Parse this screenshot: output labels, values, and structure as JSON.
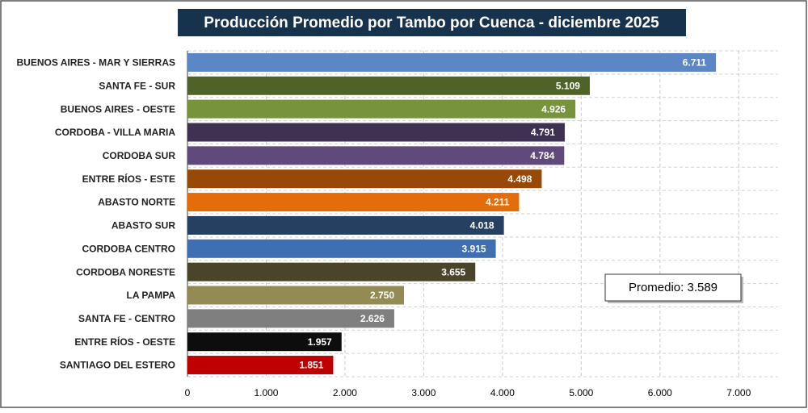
{
  "chart_data": {
    "type": "bar",
    "orientation": "horizontal",
    "title": "Producción Promedio por Tambo por Cuenca - diciembre 2025",
    "categories": [
      "BUENOS AIRES - MAR Y SIERRAS",
      "SANTA FE - SUR",
      "BUENOS AIRES - OESTE",
      "CORDOBA - VILLA MARIA",
      "CORDOBA SUR",
      "ENTRE RÍOS - ESTE",
      "ABASTO NORTE",
      "ABASTO SUR",
      "CORDOBA CENTRO",
      "CORDOBA NORESTE",
      "LA PAMPA",
      "SANTA FE - CENTRO",
      "ENTRE RÍOS - OESTE",
      "SANTIAGO DEL ESTERO"
    ],
    "values": [
      6711,
      5109,
      4926,
      4791,
      4784,
      4498,
      4211,
      4018,
      3915,
      3655,
      2750,
      2626,
      1957,
      1851
    ],
    "value_labels": [
      "6.711",
      "5.109",
      "4.926",
      "4.791",
      "4.784",
      "4.498",
      "4.211",
      "4.018",
      "3.915",
      "3.655",
      "2.750",
      "2.626",
      "1.957",
      "1.851"
    ],
    "colors": [
      "#5b87c6",
      "#4f6228",
      "#77933c",
      "#3f3151",
      "#604a7b",
      "#984807",
      "#e46c0a",
      "#254061",
      "#3e6fb0",
      "#4a452a",
      "#948a54",
      "#7f7f7f",
      "#0d0d0d",
      "#c00000"
    ],
    "xlim": [
      0,
      7500
    ],
    "xticks": [
      0,
      {
        "value": 1000,
        "label": "1.000"
      },
      {
        "value": 2000,
        "label": "2.000"
      },
      {
        "value": 3000,
        "label": "3.000"
      },
      {
        "value": 4000,
        "label": "4.000"
      },
      {
        "value": 5000,
        "label": "5.000"
      },
      {
        "value": 6000,
        "label": "6.000"
      },
      {
        "value": 7000,
        "label": "7.000"
      }
    ],
    "grid": true,
    "annotation": "Promedio: 3.589"
  }
}
